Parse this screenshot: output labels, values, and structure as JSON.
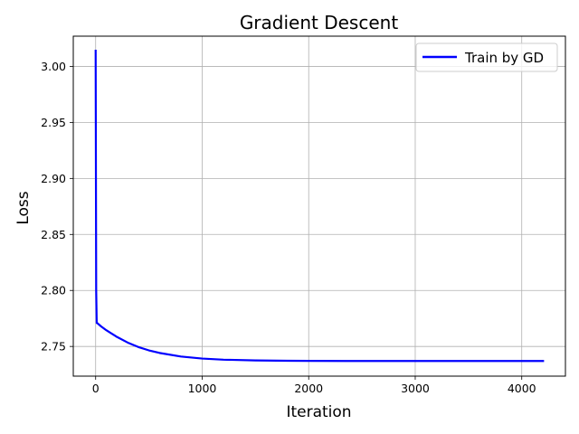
{
  "chart_data": {
    "type": "line",
    "title": "Gradient Descent",
    "xlabel": "Iteration",
    "ylabel": "Loss",
    "xlim": [
      -210,
      4410
    ],
    "ylim": [
      2.7235,
      3.027
    ],
    "xticks": [
      0,
      1000,
      2000,
      3000,
      4000
    ],
    "xtick_labels": [
      "0",
      "1000",
      "2000",
      "3000",
      "4000"
    ],
    "yticks": [
      2.75,
      2.8,
      2.85,
      2.9,
      2.95,
      3.0
    ],
    "ytick_labels": [
      "2.75",
      "2.80",
      "2.85",
      "2.90",
      "2.95",
      "3.00"
    ],
    "grid": true,
    "legend_position": "upper right",
    "series": [
      {
        "name": "Train by GD",
        "color": "#0000ff",
        "x": [
          0,
          5,
          10,
          20,
          50,
          100,
          150,
          200,
          300,
          400,
          500,
          600,
          800,
          1000,
          1200,
          1500,
          1800,
          2000,
          2500,
          3000,
          3500,
          4000,
          4200
        ],
        "y": [
          3.014,
          2.8,
          2.771,
          2.7705,
          2.768,
          2.7645,
          2.7615,
          2.7585,
          2.7535,
          2.7495,
          2.7465,
          2.7442,
          2.741,
          2.7392,
          2.7382,
          2.7375,
          2.7372,
          2.7371,
          2.737,
          2.737,
          2.737,
          2.737,
          2.737
        ]
      }
    ]
  }
}
